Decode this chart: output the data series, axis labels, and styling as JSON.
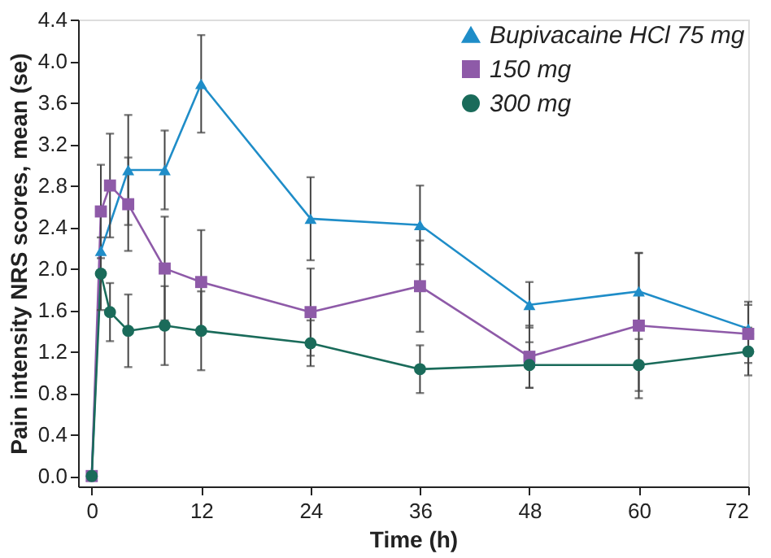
{
  "chart_data": {
    "type": "line",
    "xlabel": "Time (h)",
    "ylabel": "Pain intensity NRS scores, mean (se)",
    "xlim": [
      -1.5,
      72
    ],
    "xticks": [
      0,
      12,
      24,
      36,
      48,
      60,
      72
    ],
    "ylim": [
      -0.1,
      4.4
    ],
    "yticks": [
      {
        "value": 0,
        "label": "0.0"
      },
      {
        "value": 0.4,
        "label": "0.4"
      },
      {
        "value": 0.8,
        "label": "0.8"
      },
      {
        "value": 1.2,
        "label": "1.2"
      },
      {
        "value": 1.6,
        "label": "1.6"
      },
      {
        "value": 2.0,
        "label": "2.0"
      },
      {
        "value": 2.4,
        "label": "2.4"
      },
      {
        "value": 2.8,
        "label": "2.8"
      },
      {
        "value": 3.2,
        "label": "3.2"
      },
      {
        "value": 3.6,
        "label": "3.6"
      },
      {
        "value": 4.0,
        "label": "4.0"
      },
      {
        "value": 4.4,
        "label": "4.4"
      }
    ],
    "grid": false,
    "legend": "top right",
    "series": [
      {
        "name": "Bupivacaine HCl 75 mg",
        "color": "#1f8dc8",
        "marker": "triangle",
        "x": [
          0,
          1,
          4,
          8,
          12,
          24,
          36,
          48,
          60,
          72
        ],
        "values": [
          0,
          2.17,
          2.95,
          2.95,
          3.78,
          2.48,
          2.42,
          1.65,
          1.78,
          1.42
        ],
        "errors": [
          null,
          null,
          0.53,
          0.38,
          0.47,
          0.4,
          0.38,
          0.22,
          0.37,
          0.26
        ]
      },
      {
        "name": "150 mg",
        "color": "#8e5aa8",
        "marker": "square",
        "x": [
          0,
          1,
          2,
          4,
          8,
          12,
          24,
          36,
          48,
          60,
          72
        ],
        "values": [
          0,
          2.55,
          2.8,
          2.62,
          2.0,
          1.87,
          1.58,
          1.83,
          1.15,
          1.45,
          1.37
        ],
        "errors": [
          null,
          0.45,
          0.5,
          0.45,
          0.5,
          0.5,
          0.42,
          0.44,
          0.3,
          0.7,
          0.28
        ]
      },
      {
        "name": "300 mg",
        "color": "#1a6b5a",
        "marker": "circle",
        "x": [
          0,
          1,
          2,
          4,
          8,
          12,
          24,
          36,
          48,
          60,
          72
        ],
        "values": [
          0,
          1.95,
          1.58,
          1.4,
          1.45,
          1.4,
          1.28,
          1.03,
          1.07,
          1.07,
          1.2
        ],
        "errors": [
          null,
          0.35,
          0.28,
          0.35,
          0.38,
          0.38,
          0.22,
          0.23,
          0.22,
          0.25,
          0.23
        ]
      }
    ]
  }
}
